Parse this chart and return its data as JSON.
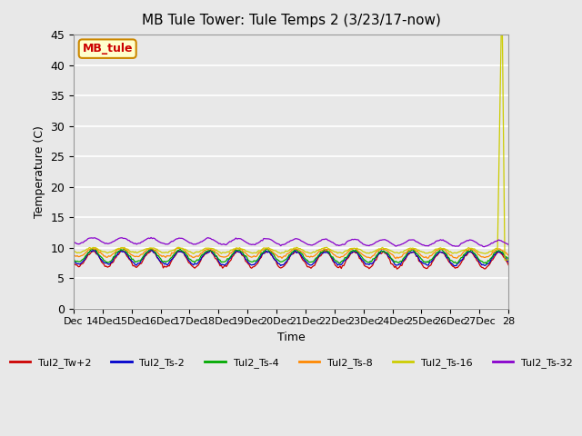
{
  "title": "MB Tule Tower: Tule Temps 2 (3/23/17-now)",
  "xlabel": "Time",
  "ylabel": "Temperature (C)",
  "ylim": [
    0,
    45
  ],
  "yticks": [
    0,
    5,
    10,
    15,
    20,
    25,
    30,
    35,
    40,
    45
  ],
  "background_color": "#e8e8e8",
  "plot_bg_color": "#e8e8e8",
  "grid_color": "#ffffff",
  "series": [
    {
      "label": "Tul2_Tw+2",
      "color": "#cc0000"
    },
    {
      "label": "Tul2_Ts-2",
      "color": "#0000cc"
    },
    {
      "label": "Tul2_Ts-4",
      "color": "#00aa00"
    },
    {
      "label": "Tul2_Ts-8",
      "color": "#ff8800"
    },
    {
      "label": "Tul2_Ts-16",
      "color": "#cccc00"
    },
    {
      "label": "Tul2_Ts-32",
      "color": "#8800cc"
    }
  ],
  "watermark_text": "MB_tule",
  "watermark_color": "#cc0000",
  "watermark_bg": "#ffffcc",
  "watermark_border": "#cc8800",
  "x_tick_labels": [
    "Dec",
    "14Dec",
    "15Dec",
    "16Dec",
    "17Dec",
    "18Dec",
    "19Dec",
    "20Dec",
    "21Dec",
    "22Dec",
    "23Dec",
    "24Dec",
    "25Dec",
    "26Dec",
    "27Dec",
    "28"
  ]
}
